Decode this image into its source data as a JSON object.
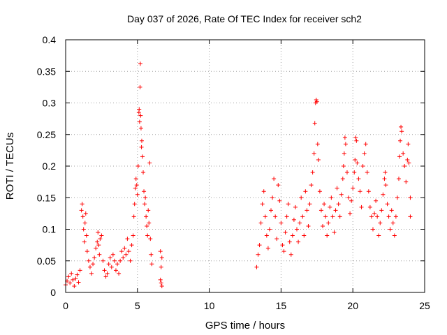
{
  "chart_data": {
    "type": "scatter",
    "title": "Day 037 of 2026, Rate Of TEC Index for receiver sch2",
    "xlabel": "GPS time / hours",
    "ylabel": "ROTI / TECUs",
    "xlim": [
      0,
      25
    ],
    "ylim": [
      0,
      0.4
    ],
    "xticks": [
      0,
      5,
      10,
      15,
      20,
      25
    ],
    "xtick_labels": [
      "0",
      "5",
      "10",
      "15",
      "20",
      "25"
    ],
    "yticks": [
      0,
      0.05,
      0.1,
      0.15,
      0.2,
      0.25,
      0.3,
      0.35,
      0.4
    ],
    "ytick_labels": [
      "0",
      "0.05",
      "0.1",
      "0.15",
      "0.2",
      "0.25",
      "0.3",
      "0.35",
      "0.4"
    ],
    "grid": true,
    "marker": "+",
    "color": "#ff0000",
    "series": [
      {
        "points": [
          [
            0.0,
            0.012
          ],
          [
            0.1,
            0.018
          ],
          [
            0.2,
            0.025
          ],
          [
            0.3,
            0.015
          ],
          [
            0.4,
            0.03
          ],
          [
            0.5,
            0.02
          ],
          [
            0.6,
            0.01
          ],
          [
            0.7,
            0.022
          ],
          [
            0.8,
            0.028
          ],
          [
            0.9,
            0.016
          ],
          [
            1.0,
            0.035
          ],
          [
            1.1,
            0.13
          ],
          [
            1.15,
            0.14
          ],
          [
            1.2,
            0.12
          ],
          [
            1.25,
            0.1
          ],
          [
            1.3,
            0.08
          ],
          [
            1.35,
            0.11
          ],
          [
            1.4,
            0.125
          ],
          [
            1.45,
            0.09
          ],
          [
            1.5,
            0.065
          ],
          [
            1.6,
            0.05
          ],
          [
            1.7,
            0.04
          ],
          [
            1.8,
            0.03
          ],
          [
            1.9,
            0.045
          ],
          [
            2.0,
            0.055
          ],
          [
            2.1,
            0.07
          ],
          [
            2.2,
            0.08
          ],
          [
            2.25,
            0.095
          ],
          [
            2.3,
            0.075
          ],
          [
            2.35,
            0.06
          ],
          [
            2.4,
            0.085
          ],
          [
            2.5,
            0.09
          ],
          [
            2.6,
            0.05
          ],
          [
            2.7,
            0.035
          ],
          [
            2.8,
            0.025
          ],
          [
            2.9,
            0.03
          ],
          [
            3.0,
            0.045
          ],
          [
            3.1,
            0.055
          ],
          [
            3.2,
            0.04
          ],
          [
            3.3,
            0.06
          ],
          [
            3.4,
            0.05
          ],
          [
            3.5,
            0.035
          ],
          [
            3.6,
            0.045
          ],
          [
            3.7,
            0.03
          ],
          [
            3.8,
            0.05
          ],
          [
            3.9,
            0.065
          ],
          [
            4.0,
            0.055
          ],
          [
            4.1,
            0.07
          ],
          [
            4.2,
            0.06
          ],
          [
            4.3,
            0.085
          ],
          [
            4.4,
            0.065
          ],
          [
            4.5,
            0.05
          ],
          [
            4.6,
            0.075
          ],
          [
            4.7,
            0.09
          ],
          [
            4.75,
            0.12
          ],
          [
            4.8,
            0.14
          ],
          [
            4.85,
            0.165
          ],
          [
            4.9,
            0.18
          ],
          [
            4.95,
            0.17
          ],
          [
            5.0,
            0.155
          ],
          [
            5.05,
            0.2
          ],
          [
            5.1,
            0.285
          ],
          [
            5.12,
            0.29
          ],
          [
            5.15,
            0.27
          ],
          [
            5.18,
            0.325
          ],
          [
            5.2,
            0.362
          ],
          [
            5.22,
            0.28
          ],
          [
            5.25,
            0.26
          ],
          [
            5.28,
            0.23
          ],
          [
            5.3,
            0.24
          ],
          [
            5.35,
            0.215
          ],
          [
            5.4,
            0.19
          ],
          [
            5.45,
            0.16
          ],
          [
            5.5,
            0.14
          ],
          [
            5.55,
            0.15
          ],
          [
            5.6,
            0.12
          ],
          [
            5.65,
            0.105
          ],
          [
            5.7,
            0.09
          ],
          [
            5.75,
            0.13
          ],
          [
            5.8,
            0.11
          ],
          [
            5.85,
            0.205
          ],
          [
            5.9,
            0.085
          ],
          [
            5.95,
            0.06
          ],
          [
            6.0,
            0.045
          ],
          [
            6.6,
            0.065
          ],
          [
            6.65,
            0.04
          ],
          [
            6.7,
            0.055
          ],
          [
            6.65,
            0.015
          ],
          [
            6.7,
            0.01
          ],
          [
            6.6,
            0.02
          ],
          [
            13.3,
            0.04
          ],
          [
            13.4,
            0.06
          ],
          [
            13.5,
            0.075
          ],
          [
            13.6,
            0.11
          ],
          [
            13.7,
            0.14
          ],
          [
            13.8,
            0.16
          ],
          [
            13.9,
            0.12
          ],
          [
            14.0,
            0.09
          ],
          [
            14.1,
            0.07
          ],
          [
            14.2,
            0.1
          ],
          [
            14.3,
            0.13
          ],
          [
            14.4,
            0.15
          ],
          [
            14.5,
            0.18
          ],
          [
            14.6,
            0.12
          ],
          [
            14.7,
            0.085
          ],
          [
            14.8,
            0.17
          ],
          [
            14.9,
            0.145
          ],
          [
            15.0,
            0.11
          ],
          [
            15.1,
            0.075
          ],
          [
            15.2,
            0.065
          ],
          [
            15.3,
            0.095
          ],
          [
            15.4,
            0.12
          ],
          [
            15.5,
            0.14
          ],
          [
            15.6,
            0.08
          ],
          [
            15.7,
            0.06
          ],
          [
            15.8,
            0.09
          ],
          [
            15.9,
            0.115
          ],
          [
            16.0,
            0.135
          ],
          [
            16.1,
            0.1
          ],
          [
            16.2,
            0.08
          ],
          [
            16.3,
            0.11
          ],
          [
            16.4,
            0.15
          ],
          [
            16.5,
            0.12
          ],
          [
            16.6,
            0.09
          ],
          [
            16.7,
            0.16
          ],
          [
            16.8,
            0.13
          ],
          [
            16.9,
            0.105
          ],
          [
            17.0,
            0.14
          ],
          [
            17.1,
            0.17
          ],
          [
            17.2,
            0.19
          ],
          [
            17.3,
            0.22
          ],
          [
            17.35,
            0.268
          ],
          [
            17.4,
            0.3
          ],
          [
            17.45,
            0.305
          ],
          [
            17.5,
            0.302
          ],
          [
            17.55,
            0.235
          ],
          [
            17.6,
            0.21
          ],
          [
            17.7,
            0.16
          ],
          [
            17.8,
            0.13
          ],
          [
            17.9,
            0.105
          ],
          [
            18.0,
            0.14
          ],
          [
            18.1,
            0.12
          ],
          [
            18.2,
            0.09
          ],
          [
            18.3,
            0.11
          ],
          [
            18.4,
            0.135
          ],
          [
            18.5,
            0.15
          ],
          [
            18.6,
            0.12
          ],
          [
            18.7,
            0.095
          ],
          [
            18.8,
            0.13
          ],
          [
            18.9,
            0.165
          ],
          [
            19.0,
            0.14
          ],
          [
            19.1,
            0.12
          ],
          [
            19.2,
            0.155
          ],
          [
            19.3,
            0.18
          ],
          [
            19.35,
            0.2
          ],
          [
            19.4,
            0.22
          ],
          [
            19.45,
            0.245
          ],
          [
            19.5,
            0.235
          ],
          [
            19.6,
            0.19
          ],
          [
            19.7,
            0.15
          ],
          [
            19.8,
            0.125
          ],
          [
            19.9,
            0.145
          ],
          [
            20.0,
            0.165
          ],
          [
            20.1,
            0.19
          ],
          [
            20.15,
            0.21
          ],
          [
            20.2,
            0.245
          ],
          [
            20.25,
            0.24
          ],
          [
            20.3,
            0.205
          ],
          [
            20.4,
            0.18
          ],
          [
            20.5,
            0.16
          ],
          [
            20.6,
            0.135
          ],
          [
            20.7,
            0.2
          ],
          [
            20.8,
            0.22
          ],
          [
            20.9,
            0.235
          ],
          [
            21.0,
            0.19
          ],
          [
            21.1,
            0.16
          ],
          [
            21.2,
            0.135
          ],
          [
            21.3,
            0.12
          ],
          [
            21.4,
            0.1
          ],
          [
            21.5,
            0.125
          ],
          [
            21.6,
            0.145
          ],
          [
            21.7,
            0.12
          ],
          [
            21.8,
            0.09
          ],
          [
            21.9,
            0.11
          ],
          [
            22.0,
            0.13
          ],
          [
            22.1,
            0.155
          ],
          [
            22.2,
            0.18
          ],
          [
            22.25,
            0.19
          ],
          [
            22.3,
            0.17
          ],
          [
            22.4,
            0.14
          ],
          [
            22.5,
            0.12
          ],
          [
            22.6,
            0.1
          ],
          [
            22.7,
            0.13
          ],
          [
            22.8,
            0.11
          ],
          [
            22.9,
            0.09
          ],
          [
            23.0,
            0.12
          ],
          [
            23.1,
            0.15
          ],
          [
            23.2,
            0.18
          ],
          [
            23.25,
            0.215
          ],
          [
            23.3,
            0.24
          ],
          [
            23.35,
            0.262
          ],
          [
            23.4,
            0.255
          ],
          [
            23.5,
            0.22
          ],
          [
            23.6,
            0.2
          ],
          [
            23.7,
            0.175
          ],
          [
            23.8,
            0.21
          ],
          [
            23.85,
            0.235
          ],
          [
            23.9,
            0.205
          ],
          [
            24.0,
            0.15
          ],
          [
            24.0,
            0.12
          ]
        ]
      }
    ]
  }
}
